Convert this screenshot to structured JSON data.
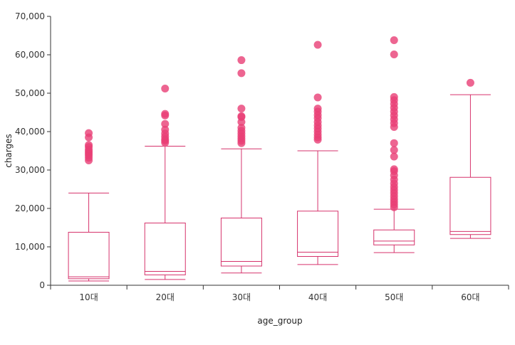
{
  "chart_data": {
    "type": "box",
    "xlabel": "age_group",
    "ylabel": "charges",
    "ylim": [
      0,
      70000
    ],
    "yticks": [
      0,
      10000,
      20000,
      30000,
      40000,
      50000,
      60000,
      70000
    ],
    "ytick_labels": [
      "0",
      "10,000",
      "20,000",
      "30,000",
      "40,000",
      "50,000",
      "60,000",
      "70,000"
    ],
    "grid": false,
    "color": "#d6336c",
    "outlier_color": "#e83e75",
    "categories": [
      "10대",
      "20대",
      "30대",
      "40대",
      "50대",
      "60대"
    ],
    "boxes": [
      {
        "category": "10대",
        "min": 1100,
        "q1": 1700,
        "median": 2200,
        "q3": 13800,
        "max": 24000,
        "outliers": [
          32500,
          33200,
          33800,
          34300,
          34800,
          35300,
          36000,
          36500,
          38500,
          39600
        ]
      },
      {
        "category": "20대",
        "min": 1500,
        "q1": 2700,
        "median": 3600,
        "q3": 16200,
        "max": 36200,
        "outliers": [
          37100,
          37600,
          38000,
          38700,
          39500,
          40500,
          42000,
          44200,
          44600,
          51200
        ]
      },
      {
        "category": "30대",
        "min": 3200,
        "q1": 5000,
        "median": 6200,
        "q3": 17500,
        "max": 35500,
        "outliers": [
          37000,
          37600,
          38200,
          38800,
          39500,
          40200,
          41000,
          42500,
          43800,
          44000,
          46000,
          55200,
          58600
        ]
      },
      {
        "category": "40대",
        "min": 5400,
        "q1": 7500,
        "median": 8600,
        "q3": 19300,
        "max": 35000,
        "outliers": [
          37900,
          38500,
          39200,
          40000,
          40800,
          41600,
          42500,
          43500,
          44300,
          45200,
          46000,
          48900,
          62600
        ]
      },
      {
        "category": "50대",
        "min": 8500,
        "q1": 10500,
        "median": 11500,
        "q3": 14400,
        "max": 19800,
        "outliers": [
          20300,
          21000,
          21700,
          22400,
          23200,
          24000,
          24800,
          25600,
          26500,
          27500,
          28600,
          29700,
          30200,
          33500,
          35200,
          37000,
          41200,
          42200,
          43200,
          44200,
          45200,
          46200,
          47200,
          48200,
          49000,
          60100,
          63800
        ]
      },
      {
        "category": "60대",
        "min": 12200,
        "q1": 13200,
        "median": 14000,
        "q3": 28100,
        "max": 49600,
        "outliers": [
          52700
        ]
      }
    ]
  }
}
